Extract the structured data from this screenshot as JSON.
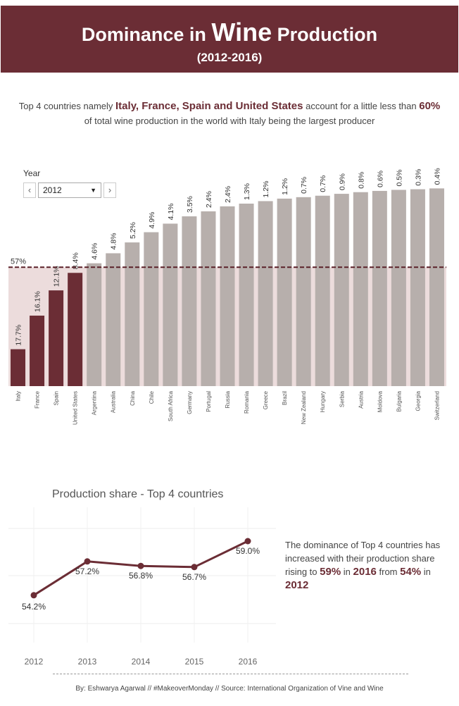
{
  "header": {
    "title_pre": "Dominance in",
    "title_big": "Wine",
    "title_post": "Production",
    "subtitle": "(2012-2016)"
  },
  "intro": {
    "part1": "Top 4 countries namely ",
    "countries": "Italy, France, Spain and United States",
    "part2": " account for a little less than ",
    "percent": "60%",
    "part3": "of total wine production in the world with Italy being the largest producer"
  },
  "year_filter": {
    "label": "Year",
    "selected": "2012",
    "prev_icon": "chevron-left-icon",
    "next_icon": "chevron-right-icon"
  },
  "side_note": {
    "part1": "The dominance of Top 4 countries has increased with their production share rising to ",
    "v1": "59%",
    "part2": " in ",
    "y1": "2016",
    "part3": " from ",
    "v2": "54%",
    "part4": " in ",
    "y2": "2012"
  },
  "footer": "By: Eshwarya Agarwal // #MakeoverMonday // Source: International Organization of Vine and Wine",
  "colors": {
    "maroon": "#6b2d35",
    "grey_bar": "#b7afac",
    "band": "#ecdcdc"
  },
  "chart_data": [
    {
      "type": "bar",
      "categories": [
        "Italy",
        "France",
        "Spain",
        "United States",
        "Argentina",
        "Australia",
        "China",
        "Chile",
        "South Africa",
        "Germany",
        "Portugal",
        "Russia",
        "Romania",
        "Greece",
        "Brazil",
        "New Zealand",
        "Hungary",
        "Serbia",
        "Austria",
        "Moldova",
        "Bulgaria",
        "Georgia",
        "Switzerland"
      ],
      "values": [
        17.7,
        16.1,
        12.1,
        8.4,
        4.6,
        4.8,
        5.2,
        4.9,
        4.1,
        3.5,
        2.4,
        2.4,
        1.3,
        1.2,
        1.2,
        0.7,
        0.7,
        0.9,
        0.8,
        0.6,
        0.5,
        0.3,
        0.4
      ],
      "value_labels": [
        "17.7%",
        "16.1%",
        "12.1%",
        "8.4%",
        "4.6%",
        "4.8%",
        "5.2%",
        "4.9%",
        "4.1%",
        "3.5%",
        "2.4%",
        "2.4%",
        "1.3%",
        "1.2%",
        "1.2%",
        "0.7%",
        "0.7%",
        "0.9%",
        "0.8%",
        "0.6%",
        "0.5%",
        "0.3%",
        "0.4%"
      ],
      "highlighted_count": 4,
      "reference_line": {
        "value": 57,
        "label": "57%"
      },
      "cumulative_ylim": [
        0,
        100
      ]
    },
    {
      "type": "line",
      "title": "Production share - Top 4 countries",
      "x": [
        "2012",
        "2013",
        "2014",
        "2015",
        "2016"
      ],
      "values": [
        54.2,
        57.2,
        56.8,
        56.7,
        59.0
      ],
      "value_labels": [
        "54.2%",
        "57.2%",
        "56.8%",
        "56.7%",
        "59.0%"
      ],
      "ylim": [
        50,
        62
      ],
      "grid": true
    }
  ]
}
